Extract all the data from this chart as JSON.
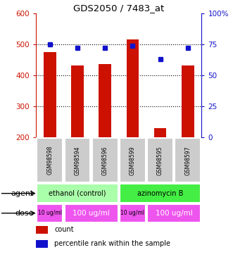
{
  "title": "GDS2050 / 7483_at",
  "samples": [
    "GSM98598",
    "GSM98594",
    "GSM98596",
    "GSM98599",
    "GSM98595",
    "GSM98597"
  ],
  "counts": [
    475,
    432,
    435,
    515,
    230,
    432
  ],
  "percentiles": [
    75,
    72,
    72,
    74,
    63,
    72
  ],
  "ylim_left": [
    200,
    600
  ],
  "ylim_right": [
    0,
    100
  ],
  "yticks_left": [
    200,
    300,
    400,
    500,
    600
  ],
  "yticks_right": [
    0,
    25,
    50,
    75,
    100
  ],
  "bar_color": "#cc1100",
  "dot_color": "#1111cc",
  "agent_labels": [
    {
      "text": "ethanol (control)",
      "start": 0,
      "end": 3,
      "color": "#aaffaa"
    },
    {
      "text": "azinomycin B",
      "start": 3,
      "end": 6,
      "color": "#44ee44"
    }
  ],
  "dose_labels": [
    {
      "text": "10 ug/ml",
      "start": 0,
      "end": 1,
      "color": "#ee55ee",
      "fontsize": 5.5
    },
    {
      "text": "100 ug/ml",
      "start": 1,
      "end": 3,
      "color": "#ee55ee",
      "fontsize": 7.5
    },
    {
      "text": "10 ug/ml",
      "start": 3,
      "end": 4,
      "color": "#ee55ee",
      "fontsize": 5.5
    },
    {
      "text": "100 ug/ml",
      "start": 4,
      "end": 6,
      "color": "#ee55ee",
      "fontsize": 7.5
    }
  ],
  "sample_bg_color": "#cccccc",
  "grid_color": "black",
  "left_axis_color": "#cc1100",
  "right_axis_color": "#1111cc",
  "legend_items": [
    {
      "label": "count",
      "color": "#cc1100"
    },
    {
      "label": "percentile rank within the sample",
      "color": "#1111cc"
    }
  ]
}
